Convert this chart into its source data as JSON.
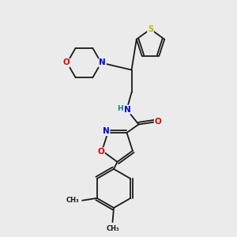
{
  "background_color": "#ebebeb",
  "bond_color": "#1a1a1a",
  "atom_colors": {
    "S": "#b8b800",
    "N": "#0000e0",
    "O": "#e00000",
    "H": "#008888",
    "C": "#1a1a1a"
  },
  "figsize": [
    3.0,
    3.0
  ],
  "dpi": 100,
  "lw": 1.3
}
